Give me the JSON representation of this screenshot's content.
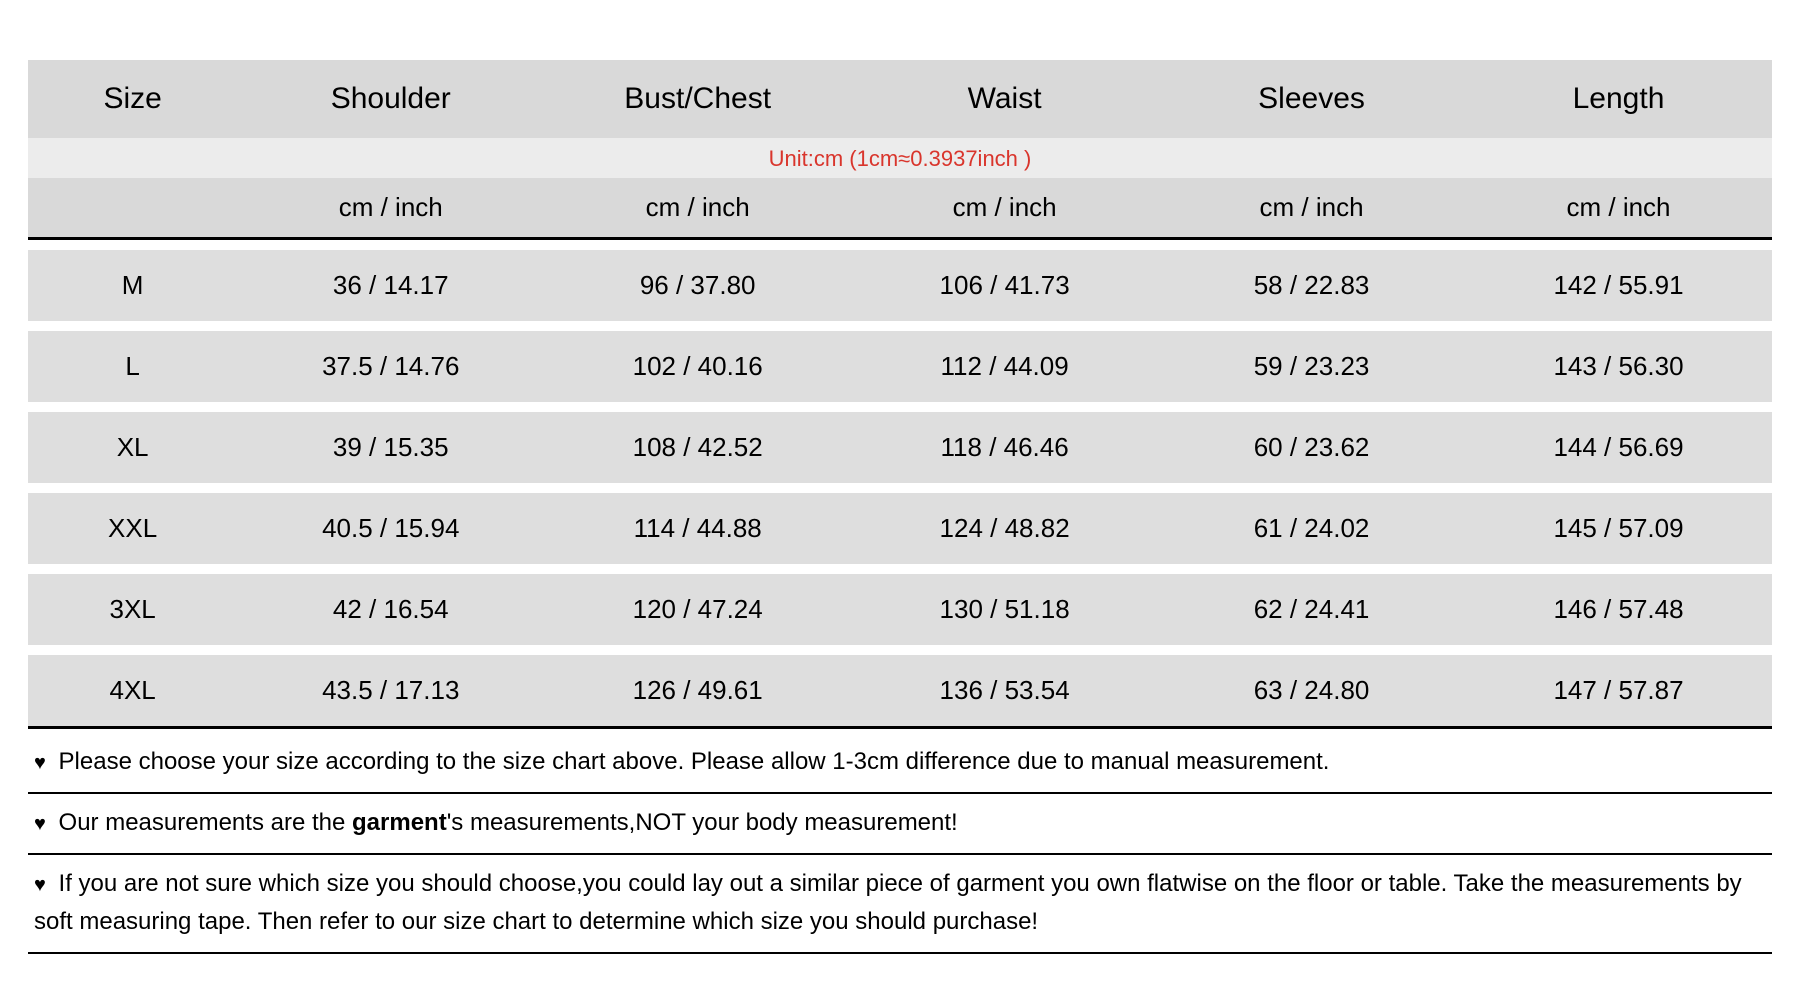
{
  "table": {
    "columns": [
      "Size",
      "Shoulder",
      "Bust/Chest",
      "Waist",
      "Sleeves",
      "Length"
    ],
    "unit_note": "Unit:cm (1cm≈0.3937inch )",
    "subheader": "cm / inch",
    "rows": [
      {
        "size": "M",
        "shoulder": "36 / 14.17",
        "bust": "96  / 37.80",
        "waist": "106 / 41.73",
        "sleeves": "58 / 22.83",
        "length": "142 / 55.91"
      },
      {
        "size": "L",
        "shoulder": "37.5 / 14.76",
        "bust": "102  / 40.16",
        "waist": "112 / 44.09",
        "sleeves": "59 / 23.23",
        "length": "143 / 56.30"
      },
      {
        "size": "XL",
        "shoulder": "39 / 15.35",
        "bust": "108  / 42.52",
        "waist": "118 / 46.46",
        "sleeves": "60 / 23.62",
        "length": "144 / 56.69"
      },
      {
        "size": "XXL",
        "shoulder": "40.5 / 15.94",
        "bust": "114  / 44.88",
        "waist": "124 / 48.82",
        "sleeves": "61 / 24.02",
        "length": "145 / 57.09"
      },
      {
        "size": "3XL",
        "shoulder": "42 / 16.54",
        "bust": "120  / 47.24",
        "waist": "130 / 51.18",
        "sleeves": "62 / 24.41",
        "length": "146 / 57.48"
      },
      {
        "size": "4XL",
        "shoulder": "43.5 / 17.13",
        "bust": "126  / 49.61",
        "waist": "136 / 53.54",
        "sleeves": "63 / 24.80",
        "length": "147 / 57.87"
      }
    ],
    "colors": {
      "header_bg": "#d9d9d9",
      "unit_bg": "#ececec",
      "unit_text": "#d9352c",
      "data_bg": "#dedede",
      "border": "#000000",
      "page_bg": "#ffffff"
    },
    "font_sizes": {
      "header": 30,
      "unit": 22,
      "subheader": 26,
      "data": 26,
      "note": 24
    }
  },
  "notes": {
    "heart": "♥",
    "n1": " Please choose your size according to the size chart above. Please allow 1-3cm difference due to manual measurement.",
    "n2a": " Our measurements are the ",
    "n2b": "garment",
    "n2c": "'s measurements,NOT your body measurement!",
    "n3": "  If you are not sure which size you should choose,you could lay out a similar piece of garment you own flatwise on the floor or table. Take the measurements by soft measuring tape. Then refer to our size chart to determine which size you should purchase!"
  }
}
